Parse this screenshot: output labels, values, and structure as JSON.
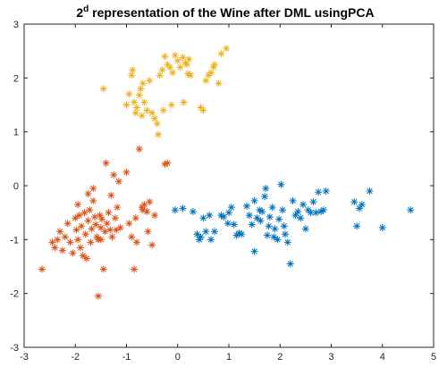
{
  "chart_data": {
    "type": "scatter",
    "title": {
      "prefix": "2",
      "superscript": "d",
      "rest": " representation of the Wine after DML usingPCA"
    },
    "xlabel": "",
    "ylabel": "",
    "xlim": [
      -3,
      5
    ],
    "ylim": [
      -3,
      3
    ],
    "x_ticks": [
      "-3",
      "-2",
      "-1",
      "0",
      "1",
      "2",
      "3",
      "4",
      "5"
    ],
    "y_ticks": [
      "-3",
      "-2",
      "-1",
      "0",
      "1",
      "2",
      "3"
    ],
    "grid": false,
    "legend": "none",
    "marker": "asterisk",
    "series": [
      {
        "color": "#0072BD",
        "points": [
          [
            -0.05,
            -0.45
          ],
          [
            0.1,
            -0.42
          ],
          [
            0.3,
            -0.48
          ],
          [
            0.38,
            -0.9
          ],
          [
            0.42,
            -1.0
          ],
          [
            0.45,
            -0.95
          ],
          [
            0.5,
            -0.6
          ],
          [
            0.55,
            -0.85
          ],
          [
            0.62,
            -0.55
          ],
          [
            0.65,
            -1.0
          ],
          [
            0.72,
            -0.85
          ],
          [
            0.85,
            -0.55
          ],
          [
            0.98,
            -0.7
          ],
          [
            1.0,
            -0.5
          ],
          [
            1.05,
            -0.4
          ],
          [
            1.1,
            -0.72
          ],
          [
            1.2,
            -0.88
          ],
          [
            1.25,
            -0.9
          ],
          [
            1.35,
            -0.38
          ],
          [
            1.4,
            -0.55
          ],
          [
            1.45,
            -0.72
          ],
          [
            1.5,
            -0.28
          ],
          [
            1.55,
            -0.6
          ],
          [
            1.6,
            -0.45
          ],
          [
            1.62,
            -0.65
          ],
          [
            1.65,
            -0.48
          ],
          [
            1.7,
            -0.2
          ],
          [
            1.72,
            -0.05
          ],
          [
            1.75,
            -0.92
          ],
          [
            1.78,
            -0.75
          ],
          [
            1.8,
            -0.58
          ],
          [
            1.85,
            -0.4
          ],
          [
            1.88,
            -0.95
          ],
          [
            1.9,
            -0.8
          ],
          [
            1.95,
            -1.0
          ],
          [
            1.98,
            -0.62
          ],
          [
            2.02,
            0.02
          ],
          [
            2.05,
            -0.45
          ],
          [
            2.08,
            -0.75
          ],
          [
            2.1,
            -0.9
          ],
          [
            2.15,
            -1.05
          ],
          [
            2.2,
            -1.45
          ],
          [
            2.25,
            -0.28
          ],
          [
            2.3,
            -0.55
          ],
          [
            2.35,
            -0.48
          ],
          [
            2.4,
            -0.6
          ],
          [
            2.45,
            -0.35
          ],
          [
            2.5,
            -0.8
          ],
          [
            2.55,
            -0.45
          ],
          [
            2.6,
            -0.5
          ],
          [
            2.65,
            -0.3
          ],
          [
            2.7,
            -0.5
          ],
          [
            2.75,
            -0.12
          ],
          [
            2.8,
            -0.48
          ],
          [
            2.85,
            -0.45
          ],
          [
            2.9,
            -0.1
          ],
          [
            1.5,
            -1.22
          ],
          [
            1.15,
            -0.92
          ],
          [
            0.9,
            -0.58
          ],
          [
            3.45,
            -0.3
          ],
          [
            3.5,
            -0.75
          ],
          [
            3.55,
            -0.42
          ],
          [
            3.6,
            -0.35
          ],
          [
            3.75,
            -0.1
          ],
          [
            4.0,
            -0.78
          ],
          [
            4.55,
            -0.45
          ]
        ]
      },
      {
        "color": "#D95319",
        "points": [
          [
            -2.65,
            -1.55
          ],
          [
            -2.45,
            -1.05
          ],
          [
            -2.4,
            -1.15
          ],
          [
            -2.35,
            -1.0
          ],
          [
            -2.3,
            -0.85
          ],
          [
            -2.25,
            -1.2
          ],
          [
            -2.2,
            -0.95
          ],
          [
            -2.15,
            -0.7
          ],
          [
            -2.1,
            -1.05
          ],
          [
            -2.05,
            -1.25
          ],
          [
            -2.0,
            -0.6
          ],
          [
            -1.98,
            -0.82
          ],
          [
            -1.95,
            -1.0
          ],
          [
            -1.92,
            -0.55
          ],
          [
            -1.9,
            -1.15
          ],
          [
            -1.88,
            -0.75
          ],
          [
            -1.85,
            -1.3
          ],
          [
            -1.82,
            -0.5
          ],
          [
            -1.8,
            -0.9
          ],
          [
            -1.78,
            -1.35
          ],
          [
            -1.75,
            -0.65
          ],
          [
            -1.72,
            -0.45
          ],
          [
            -1.7,
            -1.05
          ],
          [
            -1.68,
            -0.8
          ],
          [
            -1.65,
            -0.28
          ],
          [
            -1.62,
            -0.58
          ],
          [
            -1.6,
            -0.72
          ],
          [
            -1.58,
            -0.95
          ],
          [
            -1.55,
            -1.0
          ],
          [
            -1.52,
            -0.55
          ],
          [
            -1.5,
            -0.78
          ],
          [
            -1.48,
            -0.62
          ],
          [
            -1.45,
            -1.55
          ],
          [
            -1.42,
            -0.85
          ],
          [
            -1.4,
            0.42
          ],
          [
            -1.38,
            -0.7
          ],
          [
            -1.35,
            -0.5
          ],
          [
            -1.32,
            -0.82
          ],
          [
            -1.3,
            -0.18
          ],
          [
            -1.28,
            -0.95
          ],
          [
            -1.25,
            0.2
          ],
          [
            -1.22,
            -0.6
          ],
          [
            -1.2,
            -0.82
          ],
          [
            -1.18,
            -0.4
          ],
          [
            -1.15,
            0.08
          ],
          [
            -1.12,
            -0.78
          ],
          [
            -1.5,
            -1.0
          ],
          [
            -1.55,
            -2.05
          ],
          [
            -1.0,
            0.25
          ],
          [
            -0.95,
            -0.7
          ],
          [
            -0.9,
            -0.95
          ],
          [
            -0.85,
            -1.55
          ],
          [
            -0.82,
            -0.6
          ],
          [
            -0.8,
            -1.05
          ],
          [
            -0.75,
            0.68
          ],
          [
            -0.7,
            -0.4
          ],
          [
            -0.68,
            -0.45
          ],
          [
            -0.65,
            -0.35
          ],
          [
            -0.6,
            -0.48
          ],
          [
            -0.58,
            -0.85
          ],
          [
            -0.55,
            -0.3
          ],
          [
            -0.5,
            -1.1
          ],
          [
            -0.45,
            -0.55
          ],
          [
            -0.25,
            0.4
          ],
          [
            -0.2,
            0.42
          ],
          [
            -1.95,
            -0.35
          ],
          [
            -1.75,
            -0.15
          ],
          [
            -1.65,
            -0.05
          ]
        ]
      },
      {
        "color": "#EDB120",
        "points": [
          [
            -1.45,
            1.8
          ],
          [
            -1.0,
            1.5
          ],
          [
            -0.95,
            1.7
          ],
          [
            -0.9,
            2.05
          ],
          [
            -0.88,
            2.15
          ],
          [
            -0.85,
            1.55
          ],
          [
            -0.82,
            1.35
          ],
          [
            -0.8,
            1.45
          ],
          [
            -0.75,
            1.68
          ],
          [
            -0.72,
            1.8
          ],
          [
            -0.7,
            1.3
          ],
          [
            -0.68,
            1.9
          ],
          [
            -0.65,
            1.55
          ],
          [
            -0.6,
            1.4
          ],
          [
            -0.55,
            1.95
          ],
          [
            -0.5,
            1.35
          ],
          [
            -0.45,
            1.25
          ],
          [
            -0.4,
            1.15
          ],
          [
            -0.38,
            0.95
          ],
          [
            -0.35,
            2.05
          ],
          [
            -0.3,
            2.15
          ],
          [
            -0.28,
            1.4
          ],
          [
            -0.25,
            2.4
          ],
          [
            -0.2,
            2.25
          ],
          [
            -0.15,
            2.2
          ],
          [
            -0.1,
            2.1
          ],
          [
            -0.05,
            2.42
          ],
          [
            0.0,
            2.32
          ],
          [
            0.05,
            2.2
          ],
          [
            0.1,
            2.38
          ],
          [
            0.12,
            1.55
          ],
          [
            0.15,
            2.28
          ],
          [
            0.18,
            2.25
          ],
          [
            0.2,
            2.08
          ],
          [
            0.22,
            2.35
          ],
          [
            0.25,
            2.05
          ],
          [
            -0.12,
            1.5
          ],
          [
            0.45,
            1.45
          ],
          [
            0.5,
            1.4
          ],
          [
            0.55,
            1.95
          ],
          [
            0.6,
            2.05
          ],
          [
            0.65,
            2.1
          ],
          [
            0.7,
            2.2
          ],
          [
            0.72,
            2.25
          ],
          [
            0.8,
            1.9
          ],
          [
            0.85,
            2.45
          ],
          [
            0.95,
            2.55
          ]
        ]
      }
    ]
  }
}
